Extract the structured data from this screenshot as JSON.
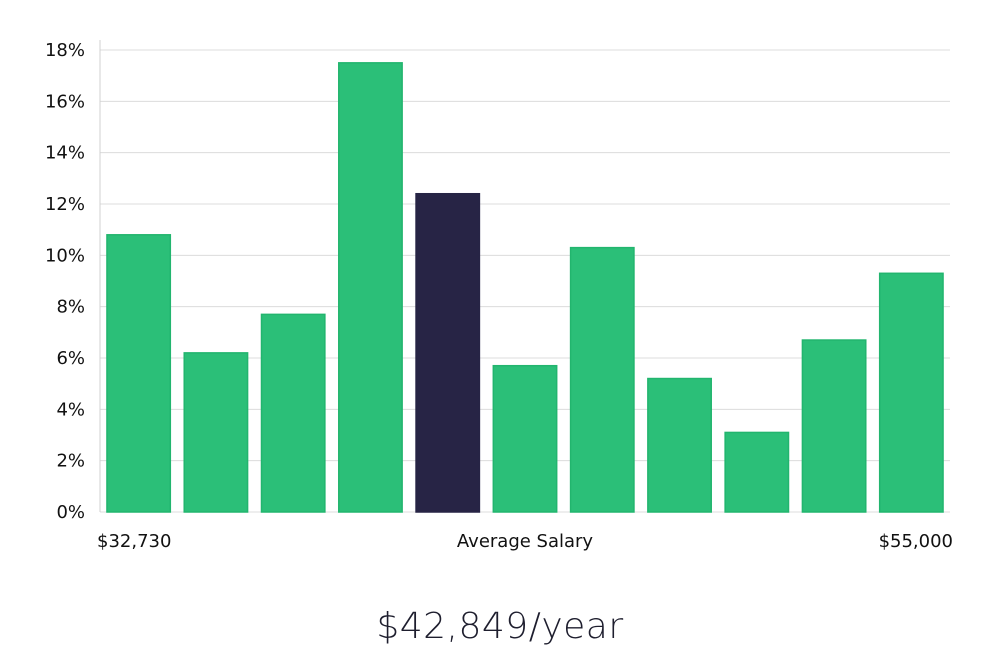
{
  "chart_data": {
    "type": "bar",
    "title": "",
    "xlabel": "Average Salary",
    "ylabel": "",
    "x_min_label": "$32,730",
    "x_max_label": "$55,000",
    "ylim": [
      0,
      18
    ],
    "yticks": [
      0,
      2,
      4,
      6,
      8,
      10,
      12,
      14,
      16,
      18
    ],
    "ytick_suffix": "%",
    "grid": true,
    "values": [
      10.8,
      6.2,
      7.7,
      17.5,
      12.4,
      5.7,
      10.3,
      5.2,
      3.1,
      6.7,
      9.3
    ],
    "highlight_index": 4,
    "colors": {
      "bar": "#2bbf78",
      "bar_stroke": "#22b56e",
      "highlight": "#272445",
      "grid": "#dcdcdc",
      "axis": "#d0d0d0"
    }
  },
  "footer": {
    "salary": "$42,849/year"
  }
}
